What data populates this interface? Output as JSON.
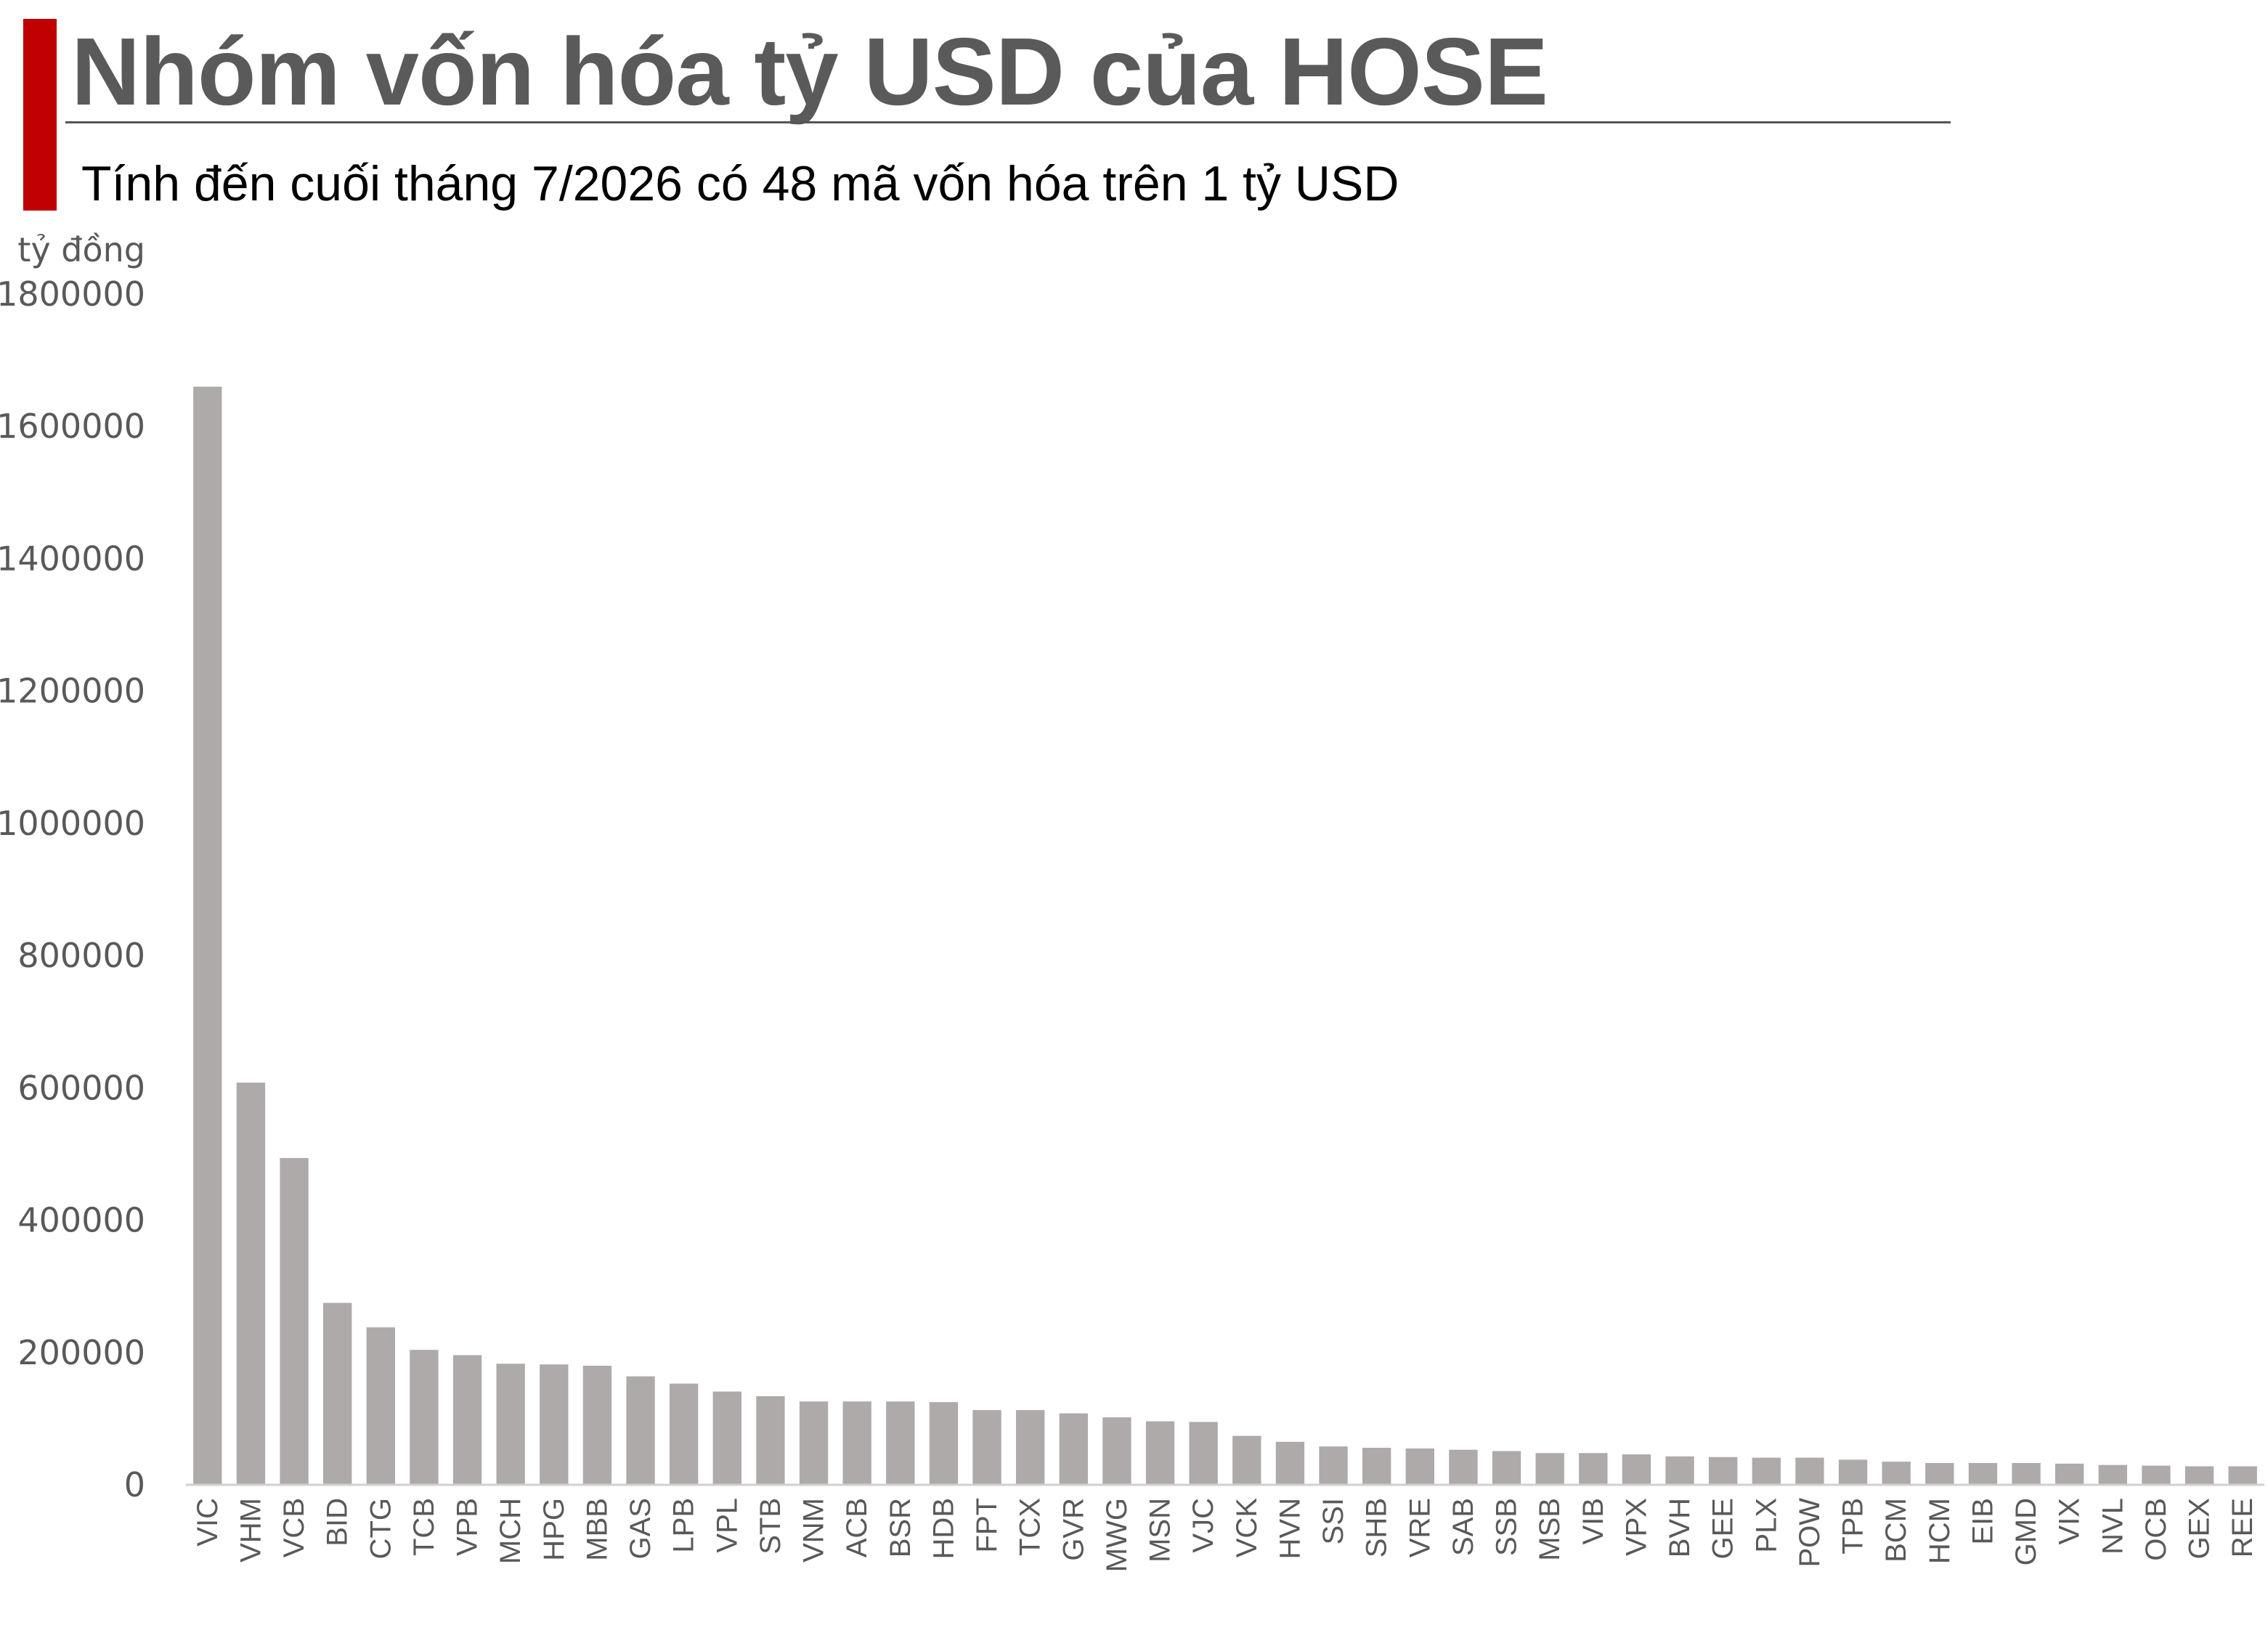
{
  "header": {
    "title": "Nhóm vốn hóa tỷ USD của HOSE",
    "subtitle": "Tính đến cuối tháng 7/2026 có 48 mã vốn hóa trên 1 tỷ USD"
  },
  "colors": {
    "accent": "#c00000",
    "bar": "#aeaaaa",
    "title": "#5a5a5a",
    "axis_text": "#595959"
  },
  "chart_data": {
    "type": "bar",
    "title": "Nhóm vốn hóa tỷ USD của HOSE",
    "subtitle": "Tính đến cuối tháng 7/2026 có 48 mã vốn hóa trên 1 tỷ USD",
    "xlabel": "",
    "ylabel": "tỷ đồng",
    "ylim": [
      0,
      1800000
    ],
    "yticks": [
      0,
      200000,
      400000,
      600000,
      800000,
      1000000,
      1200000,
      1400000,
      1600000,
      1800000
    ],
    "grid": false,
    "legend": "none",
    "categories": [
      "VIC",
      "VHM",
      "VCB",
      "BID",
      "CTG",
      "TCB",
      "VPB",
      "MCH",
      "HPG",
      "MBB",
      "GAS",
      "LPB",
      "VPL",
      "STB",
      "VNM",
      "ACB",
      "BSR",
      "HDB",
      "FPT",
      "TCX",
      "GVR",
      "MWG",
      "MSN",
      "VJC",
      "VCK",
      "HVN",
      "SSI",
      "SHB",
      "VRE",
      "SAB",
      "SSB",
      "MSB",
      "VIB",
      "VPX",
      "BVH",
      "GEE",
      "PLX",
      "POW",
      "TPB",
      "BCM",
      "HCM",
      "EIB",
      "GMD",
      "VIX",
      "NVL",
      "OCB",
      "GEX",
      "REE"
    ],
    "values": [
      1660000,
      608000,
      494000,
      275000,
      238000,
      204000,
      196000,
      183000,
      182000,
      180000,
      164000,
      153000,
      141000,
      134000,
      126000,
      126000,
      126000,
      125000,
      113000,
      113000,
      108000,
      102000,
      96000,
      95000,
      74000,
      65000,
      58000,
      56000,
      55000,
      53000,
      51000,
      48000,
      48000,
      46000,
      43000,
      42000,
      41000,
      41000,
      38000,
      35000,
      33000,
      33000,
      33000,
      32000,
      30000,
      29000,
      28000,
      28000
    ]
  }
}
